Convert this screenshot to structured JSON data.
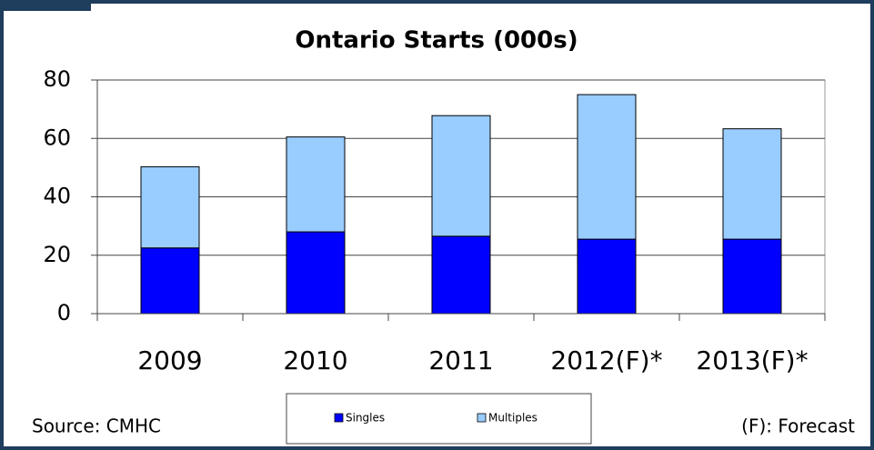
{
  "chart_data": {
    "type": "stacked_bar",
    "title": "Ontario Starts (000s)",
    "categories": [
      "2009",
      "2010",
      "2011",
      "2012(F)*",
      "2013(F)*"
    ],
    "series": [
      {
        "name": "Singles",
        "color": "#0000ff",
        "values": [
          22.5,
          28,
          26.5,
          25.5,
          25.5
        ]
      },
      {
        "name": "Multiples",
        "color": "#99ccff",
        "values": [
          27.8,
          32.5,
          41.3,
          49.5,
          37.8
        ]
      }
    ],
    "ylim": [
      0,
      80
    ],
    "yticks": [
      0,
      20,
      40,
      60,
      80
    ],
    "grid": true,
    "annotations": [
      "Source: CMHC",
      "(F): Forecast"
    ]
  }
}
